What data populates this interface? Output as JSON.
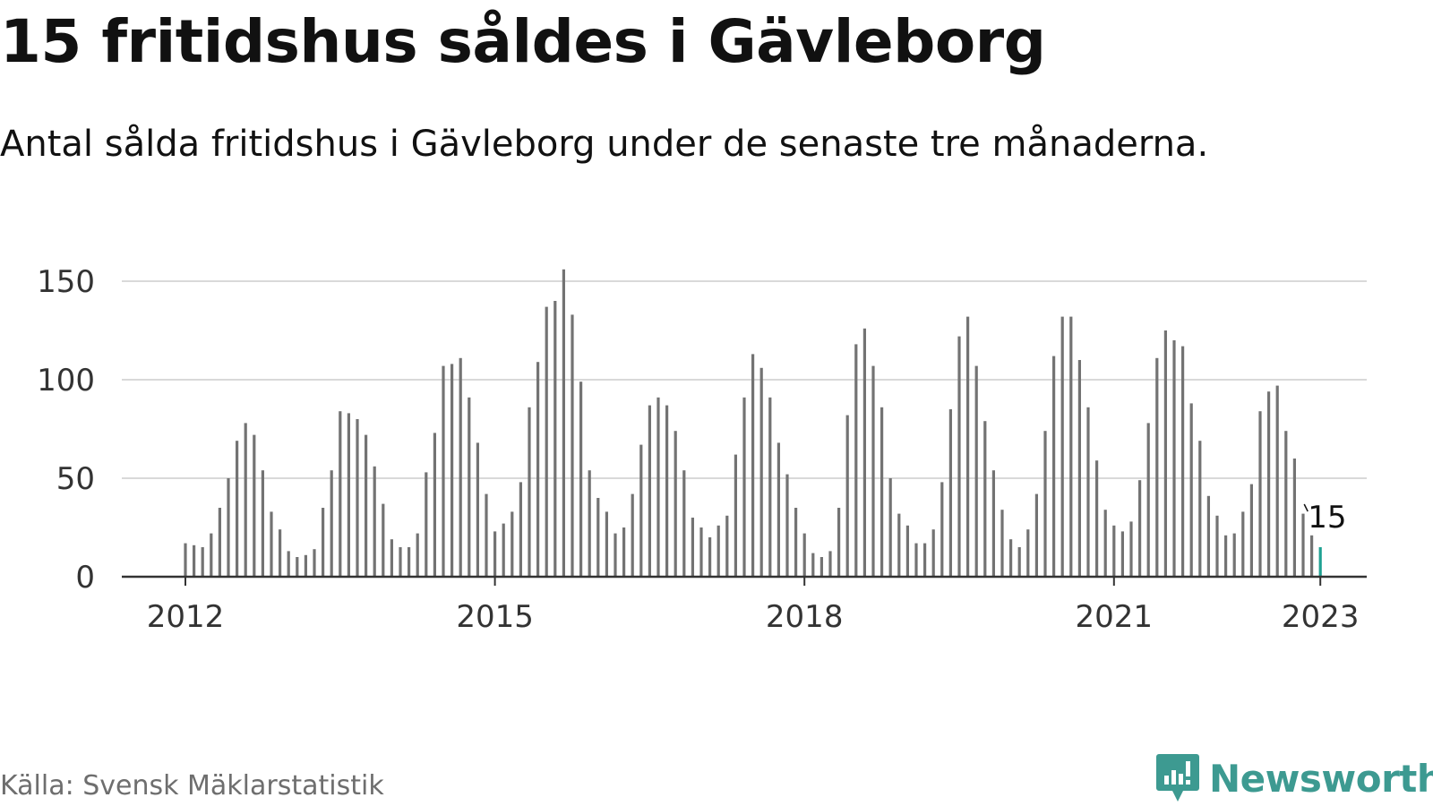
{
  "title": "15 fritidshus såldes i Gävleborg",
  "subtitle": "Antal sålda fritidshus i Gävleborg under de senaste tre månaderna.",
  "source": "Källa: Svensk Mäklarstatistik",
  "brand": "Newsworthy",
  "colors": {
    "bar": "#737373",
    "highlight": "#1fa192",
    "brand": "#3d9a91",
    "grid": "#d9d9d9",
    "axis": "#333333",
    "text": "#111111",
    "source": "#6e6e6e"
  },
  "chart_data": {
    "type": "bar",
    "title": "15 fritidshus såldes i Gävleborg",
    "subtitle": "Antal sålda fritidshus i Gävleborg under de senaste tre månaderna.",
    "xlabel": "",
    "ylabel": "",
    "ylim": [
      0,
      158
    ],
    "yticks": [
      0,
      50,
      100,
      150
    ],
    "grid": true,
    "x_tick_labels": [
      "2012",
      "2015",
      "2018",
      "2021",
      "2023"
    ],
    "start_month": "2012-01",
    "highlight": {
      "month": "2023-01",
      "value": 15,
      "label": "15"
    },
    "series": [
      {
        "values": [
          17,
          16,
          15,
          22,
          35,
          50,
          69,
          78,
          72,
          54,
          33,
          24,
          13,
          10,
          11,
          14,
          35,
          54,
          84,
          83,
          80,
          72,
          56,
          37,
          19,
          15,
          15,
          22,
          53,
          73,
          107,
          108,
          111,
          91,
          68,
          42,
          23,
          27,
          33,
          48,
          86,
          109,
          137,
          140,
          156,
          133,
          99,
          54,
          40,
          33,
          22,
          25,
          42,
          67,
          87,
          91,
          87,
          74,
          54,
          30,
          25,
          20,
          26,
          31,
          62,
          91,
          113,
          106,
          91,
          68,
          52,
          35,
          22,
          12,
          10,
          13,
          35,
          82,
          118,
          126,
          107,
          86,
          50,
          32,
          26,
          17,
          17,
          24,
          48,
          85,
          122,
          132,
          107,
          79,
          54,
          34,
          19,
          15,
          24,
          42,
          74,
          112,
          132,
          132,
          110,
          86,
          59,
          34,
          26,
          23,
          28,
          49,
          78,
          111,
          125,
          120,
          117,
          88,
          69,
          41,
          31,
          21,
          22,
          33,
          47,
          84,
          94,
          97,
          74,
          60,
          32,
          21,
          15
        ]
      }
    ]
  }
}
